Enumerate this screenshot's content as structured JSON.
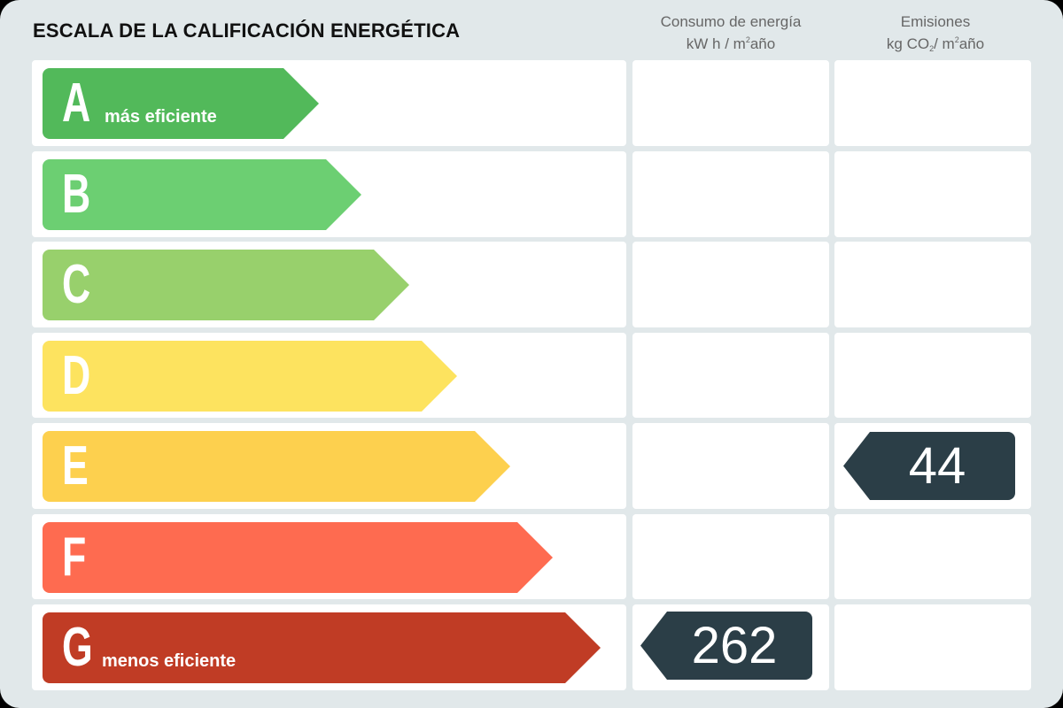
{
  "title": "ESCALA DE LA CALIFICACIÓN ENERGÉTICA",
  "columns": {
    "consumption": {
      "line1": "Consumo de energía",
      "unit_pre": "kW h / m",
      "unit_sup": "2",
      "unit_post": "año"
    },
    "emissions": {
      "line1": "Emisiones",
      "unit_pre": "kg CO",
      "unit_sub": "2",
      "unit_mid": "/ m",
      "unit_sup": "2",
      "unit_post": "año"
    }
  },
  "ratings": [
    {
      "letter": "A",
      "label": "más eficiente",
      "color": "#52b95a"
    },
    {
      "letter": "B",
      "label": "",
      "color": "#6ccf72"
    },
    {
      "letter": "C",
      "label": "",
      "color": "#98d06c"
    },
    {
      "letter": "D",
      "label": "",
      "color": "#fde35f"
    },
    {
      "letter": "E",
      "label": "",
      "color": "#fdd04e"
    },
    {
      "letter": "F",
      "label": "",
      "color": "#fe6b50"
    },
    {
      "letter": "G",
      "label": "menos eficiente",
      "color": "#c03c25"
    }
  ],
  "consumption_value": {
    "rating": "G",
    "value": "262"
  },
  "emissions_value": {
    "rating": "E",
    "value": "44"
  },
  "badge_color": "#2b3e47"
}
